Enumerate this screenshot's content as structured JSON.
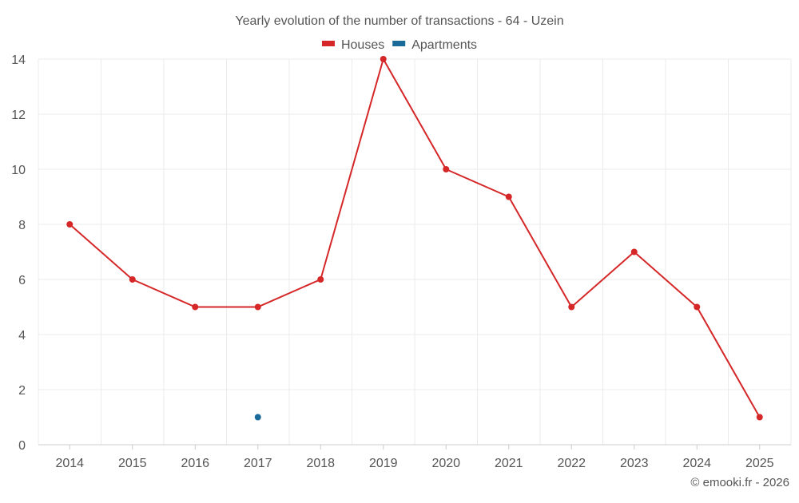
{
  "chart_data": {
    "type": "line",
    "title": "Yearly evolution of the number of transactions - 64 - Uzein",
    "xlabel": "",
    "ylabel": "",
    "categories": [
      "2014",
      "2015",
      "2016",
      "2017",
      "2018",
      "2019",
      "2020",
      "2021",
      "2022",
      "2023",
      "2024",
      "2025"
    ],
    "ylim": [
      0,
      14
    ],
    "yticks": [
      0,
      2,
      4,
      6,
      8,
      10,
      12,
      14
    ],
    "grid": true,
    "legend_position": "top-center",
    "series": [
      {
        "name": "Houses",
        "color": "#d62728",
        "values": [
          8,
          6,
          5,
          5,
          6,
          14,
          10,
          9,
          5,
          7,
          5,
          1
        ]
      },
      {
        "name": "Apartments",
        "color": "#1a6a9a",
        "values": [
          null,
          null,
          null,
          1,
          null,
          null,
          null,
          null,
          null,
          null,
          null,
          null
        ]
      }
    ]
  },
  "credit": "© emooki.fr - 2026"
}
